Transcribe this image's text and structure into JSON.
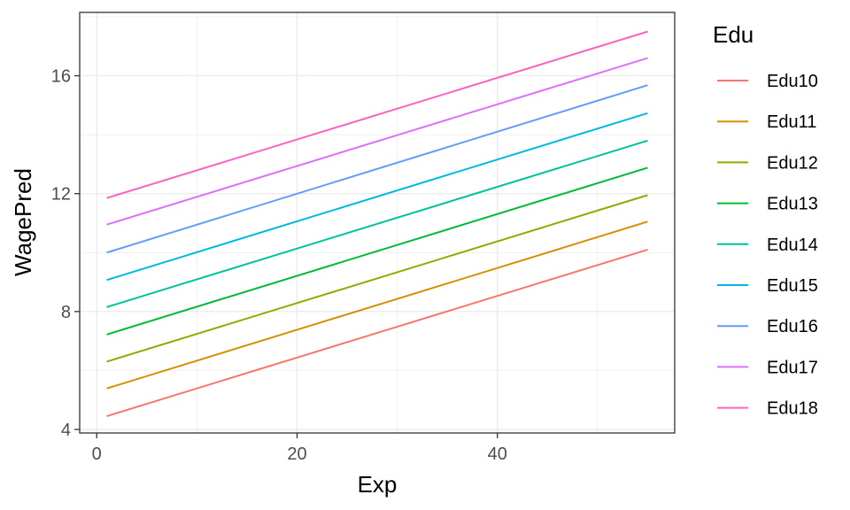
{
  "chart_data": {
    "type": "line",
    "xlabel": "Exp",
    "ylabel": "WagePred",
    "xlim": [
      -1.7,
      57.7
    ],
    "ylim": [
      3.88,
      18.15
    ],
    "xticks": [
      0,
      20,
      40
    ],
    "yticks": [
      4,
      8,
      12,
      16
    ],
    "grid": true,
    "legend": {
      "title": "Edu",
      "position": "right"
    },
    "series": [
      {
        "name": "Edu10",
        "color": "#F8766D",
        "x": [
          1,
          55
        ],
        "y": [
          4.45,
          10.1
        ]
      },
      {
        "name": "Edu11",
        "color": "#D39200",
        "x": [
          1,
          55
        ],
        "y": [
          5.39,
          11.05
        ]
      },
      {
        "name": "Edu12",
        "color": "#93AA00",
        "x": [
          1,
          55
        ],
        "y": [
          6.3,
          11.95
        ]
      },
      {
        "name": "Edu13",
        "color": "#00BA38",
        "x": [
          1,
          55
        ],
        "y": [
          7.22,
          12.88
        ]
      },
      {
        "name": "Edu14",
        "color": "#00C19F",
        "x": [
          1,
          55
        ],
        "y": [
          8.15,
          13.8
        ]
      },
      {
        "name": "Edu15",
        "color": "#00B9E3",
        "x": [
          1,
          55
        ],
        "y": [
          9.07,
          14.73
        ]
      },
      {
        "name": "Edu16",
        "color": "#619CFF",
        "x": [
          1,
          55
        ],
        "y": [
          10.0,
          15.68
        ]
      },
      {
        "name": "Edu17",
        "color": "#DB72FB",
        "x": [
          1,
          55
        ],
        "y": [
          10.95,
          16.6
        ]
      },
      {
        "name": "Edu18",
        "color": "#FF61C3",
        "x": [
          1,
          55
        ],
        "y": [
          11.85,
          17.5
        ]
      }
    ]
  }
}
